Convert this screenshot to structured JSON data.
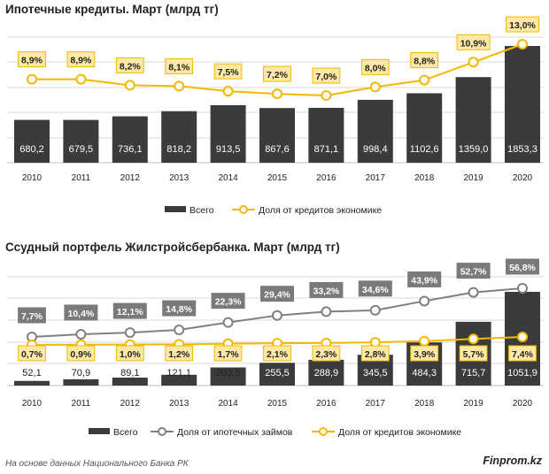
{
  "footer": {
    "note": "На основе данных  Национального  Банка РК",
    "brand": "Finprom.kz"
  },
  "colors": {
    "bar": "#3b3b3b",
    "gold": "#f5b800",
    "gray_line": "#808080",
    "grid": "#d9d9d9"
  },
  "chart_data": [
    {
      "type": "bar",
      "title": "Ипотечные кредиты. Март (млрд тг)",
      "categories": [
        "2010",
        "2011",
        "2012",
        "2013",
        "2014",
        "2015",
        "2016",
        "2017",
        "2018",
        "2019",
        "2020"
      ],
      "series": [
        {
          "name": "Всего",
          "type": "bar",
          "values": [
            680.2,
            679.5,
            736.1,
            818.2,
            913.5,
            867.6,
            871.1,
            998.4,
            1102.6,
            1359.0,
            1853.3
          ],
          "labels": [
            "680,2",
            "679,5",
            "736,1",
            "818,2",
            "913,5",
            "867,6",
            "871,1",
            "998,4",
            "1102,6",
            "1359,0",
            "1853,3"
          ]
        },
        {
          "name": "Доля от кредитов экономике",
          "type": "line",
          "values": [
            8.9,
            8.9,
            8.2,
            8.1,
            7.5,
            7.2,
            7.0,
            8.0,
            8.8,
            10.9,
            13.0
          ],
          "labels": [
            "8,9%",
            "8,9%",
            "8,2%",
            "8,1%",
            "7,5%",
            "7,2%",
            "7,0%",
            "8,0%",
            "8,8%",
            "10,9%",
            "13,0%"
          ]
        }
      ],
      "legend": "bottom"
    },
    {
      "type": "bar",
      "title": "Ссудный портфель Жилстройсбербанка. Март (млрд тг)",
      "categories": [
        "2010",
        "2011",
        "2012",
        "2013",
        "2014",
        "2015",
        "2016",
        "2017",
        "2018",
        "2019",
        "2020"
      ],
      "series": [
        {
          "name": "Всего",
          "type": "bar",
          "values": [
            52.1,
            70.9,
            89.1,
            121.1,
            203.5,
            255.5,
            288.9,
            345.5,
            484.3,
            715.7,
            1051.9
          ],
          "labels": [
            "52,1",
            "70,9",
            "89,1",
            "121,1",
            "203,5",
            "255,5",
            "288,9",
            "345,5",
            "484,3",
            "715,7",
            "1051,9"
          ]
        },
        {
          "name": "Доля от ипотечных займов",
          "type": "line",
          "values": [
            7.7,
            10.4,
            12.1,
            14.8,
            22.3,
            29.4,
            33.2,
            34.6,
            43.9,
            52.7,
            56.8
          ],
          "labels": [
            "7,7%",
            "10,4%",
            "12,1%",
            "14,8%",
            "22,3%",
            "29,4%",
            "33,2%",
            "34,6%",
            "43,9%",
            "52,7%",
            "56,8%"
          ]
        },
        {
          "name": "Доля от кредитов экономике",
          "type": "line",
          "values": [
            0.7,
            0.9,
            1.0,
            1.2,
            1.7,
            2.1,
            2.3,
            2.8,
            3.9,
            5.7,
            7.4
          ],
          "labels": [
            "0,7%",
            "0,9%",
            "1,0%",
            "1,2%",
            "1,7%",
            "2,1%",
            "2,3%",
            "2,8%",
            "3,9%",
            "5,7%",
            "7,4%"
          ]
        }
      ],
      "legend": "bottom"
    }
  ]
}
